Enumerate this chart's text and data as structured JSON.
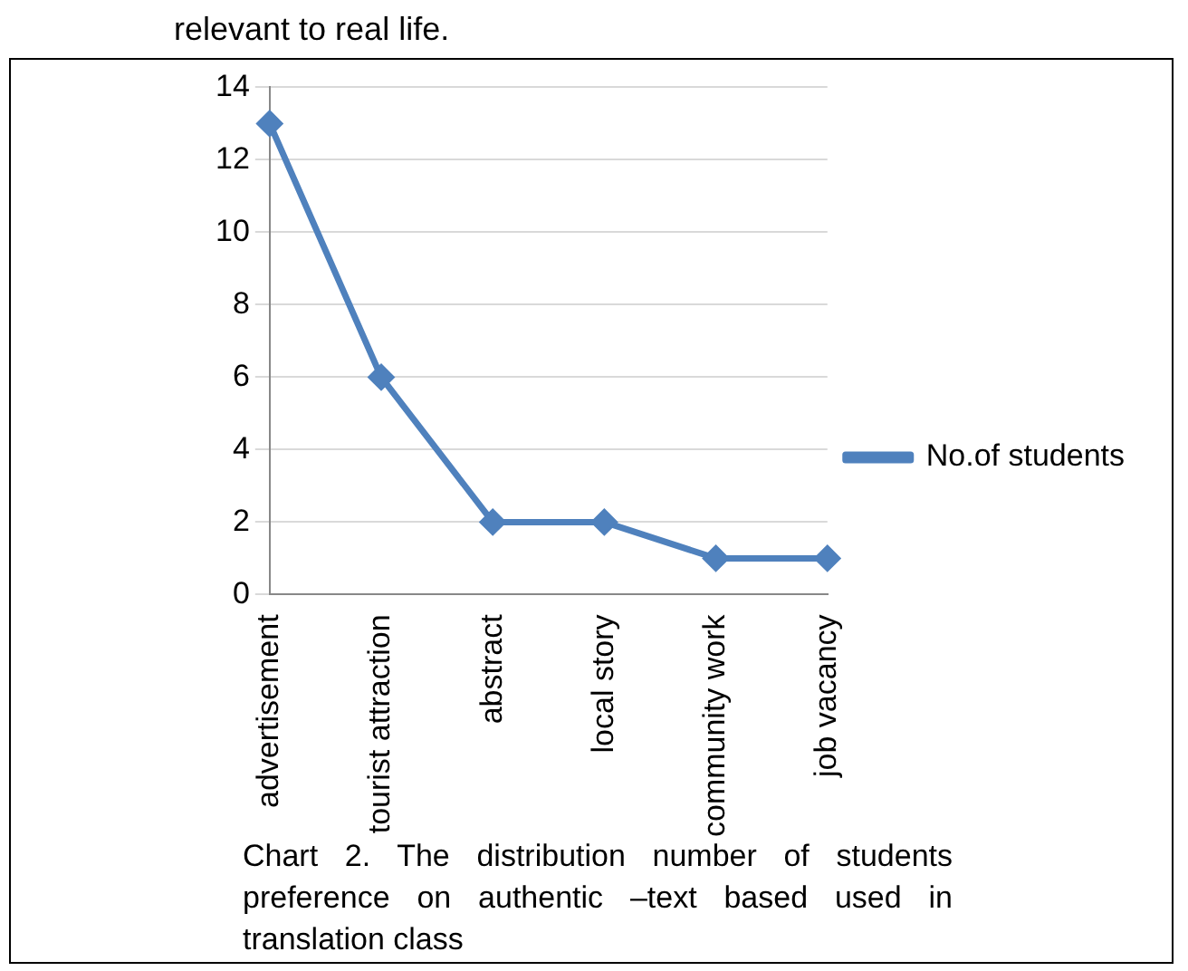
{
  "chart_data": {
    "type": "line",
    "categories": [
      "advertisement",
      "tourist attraction",
      "abstract",
      "local story",
      "community work",
      "job vacancy"
    ],
    "series": [
      {
        "name": "No.of students",
        "color": "#4f81bd",
        "values": [
          13,
          6,
          2,
          2,
          1,
          1
        ]
      }
    ],
    "ylim": [
      0,
      14
    ],
    "yticks": [
      0,
      2,
      4,
      6,
      8,
      10,
      12,
      14
    ],
    "grid": "y",
    "legend": "right",
    "marker": "diamond",
    "line_style": "solid",
    "annotations": [
      "relevant to real life.",
      "Chart 2.  The distribution number of students preference on authentic –text based used in translation class"
    ]
  }
}
